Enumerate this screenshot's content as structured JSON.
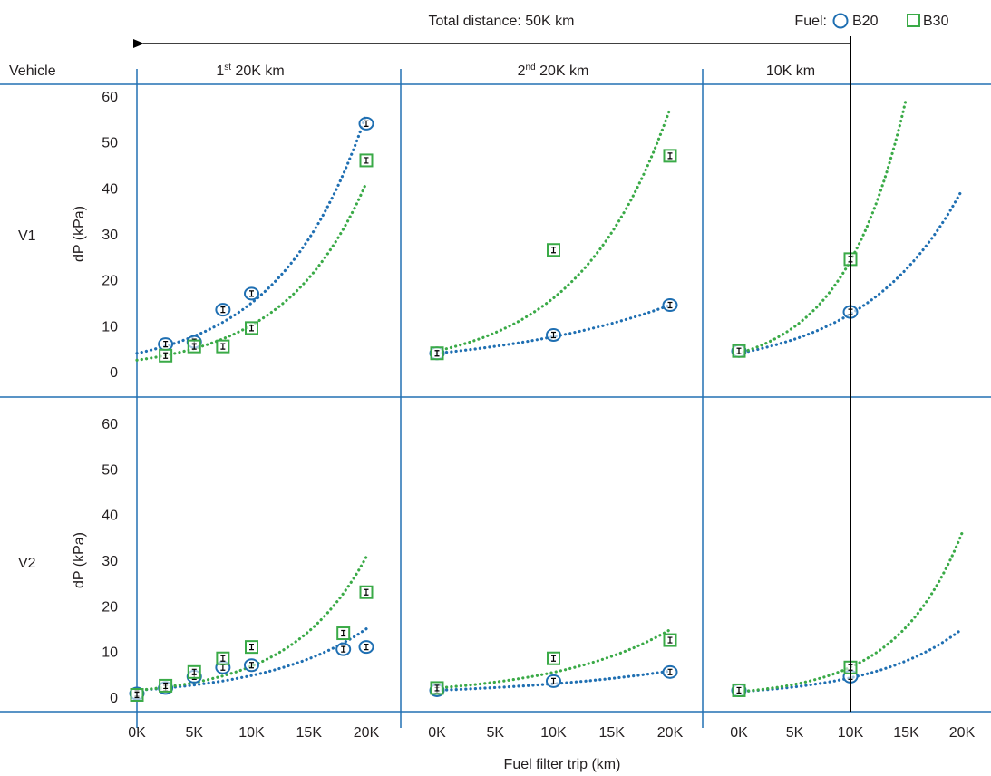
{
  "header": {
    "total_distance": "Total distance: 50K km",
    "fuel_label": "Fuel:",
    "vehicle_label": "Vehicle"
  },
  "columns": [
    {
      "main": "1",
      "sup": "st",
      "rest": " 20K km"
    },
    {
      "main": "2",
      "sup": "nd",
      "rest": " 20K km"
    },
    {
      "main": "10K km",
      "sup": "",
      "rest": ""
    }
  ],
  "rows": [
    "V1",
    "V2"
  ],
  "x_axis_title": "Fuel filter trip (km)",
  "y_axis_title": "dP (kPa)",
  "colors": {
    "B20": "#1f6fb2",
    "B30": "#3aaa47",
    "divider": "#2271b3",
    "marker": "#000000"
  },
  "chart_data": [
    {
      "type": "scatter",
      "row": "V1",
      "column": "1st 20K km",
      "ylabel": "dP (kPa)",
      "ylim": [
        0,
        60
      ],
      "xlim": [
        0,
        20
      ],
      "series": [
        {
          "name": "B20",
          "marker": "circle",
          "x": [
            2.5,
            5,
            7.5,
            10,
            20
          ],
          "y": [
            6,
            6.5,
            13.5,
            17,
            54
          ],
          "trend": {
            "a": 4.0,
            "b": 0.132,
            "x0": 0,
            "x1": 20
          }
        },
        {
          "name": "B30",
          "marker": "square",
          "x": [
            2.5,
            5,
            7.5,
            10,
            20
          ],
          "y": [
            3.5,
            5.5,
            5.5,
            9.5,
            46
          ],
          "trend": {
            "a": 2.5,
            "b": 0.14,
            "x0": 0,
            "x1": 20
          }
        }
      ]
    },
    {
      "type": "scatter",
      "row": "V1",
      "column": "2nd 20K km",
      "ylim": [
        0,
        60
      ],
      "xlim": [
        0,
        20
      ],
      "series": [
        {
          "name": "B20",
          "marker": "circle",
          "x": [
            0,
            10,
            20
          ],
          "y": [
            4,
            8,
            14.5
          ],
          "trend": {
            "a": 4.0,
            "b": 0.0644,
            "x0": 0,
            "x1": 20
          }
        },
        {
          "name": "B30",
          "marker": "square",
          "x": [
            0,
            10,
            20
          ],
          "y": [
            4,
            26.5,
            47
          ],
          "trend": {
            "a": 4.5,
            "b": 0.1272,
            "x0": 0,
            "x1": 20
          }
        }
      ]
    },
    {
      "type": "scatter",
      "row": "V1",
      "column": "10K km",
      "ylim": [
        0,
        60
      ],
      "xlim": [
        0,
        20
      ],
      "series": [
        {
          "name": "B20",
          "marker": "circle",
          "x": [
            0,
            10
          ],
          "y": [
            4.5,
            13
          ],
          "trend": {
            "a": 4.0,
            "b": 0.1146,
            "x0": 0,
            "x1": 20
          }
        },
        {
          "name": "B30",
          "marker": "square",
          "x": [
            0,
            10
          ],
          "y": [
            4.5,
            24.5
          ],
          "trend": {
            "a": 4.0,
            "b": 0.18,
            "x0": 0,
            "x1": 15
          }
        }
      ]
    },
    {
      "type": "scatter",
      "row": "V2",
      "column": "1st 20K km",
      "ylabel": "dP (kPa)",
      "ylim": [
        0,
        60
      ],
      "xlim": [
        0,
        20
      ],
      "series": [
        {
          "name": "B20",
          "marker": "circle",
          "x": [
            0,
            2.5,
            5,
            7.5,
            10,
            18,
            20
          ],
          "y": [
            0.8,
            2,
            4.5,
            6.5,
            7,
            10.5,
            11
          ],
          "trend": {
            "a": 1.5,
            "b": 0.115,
            "x0": 0,
            "x1": 20
          }
        },
        {
          "name": "B30",
          "marker": "square",
          "x": [
            0,
            2.5,
            5,
            7.5,
            10,
            18,
            20
          ],
          "y": [
            0.5,
            2.5,
            5.5,
            8.5,
            11,
            14,
            23
          ],
          "trend": {
            "a": 1.5,
            "b": 0.151,
            "x0": 0,
            "x1": 20
          }
        }
      ]
    },
    {
      "type": "scatter",
      "row": "V2",
      "column": "2nd 20K km",
      "ylim": [
        0,
        60
      ],
      "xlim": [
        0,
        20
      ],
      "series": [
        {
          "name": "B20",
          "marker": "circle",
          "x": [
            0,
            10,
            20
          ],
          "y": [
            1.5,
            3.5,
            5.5
          ],
          "trend": {
            "a": 1.5,
            "b": 0.067,
            "x0": 0,
            "x1": 20
          }
        },
        {
          "name": "B30",
          "marker": "square",
          "x": [
            0,
            10,
            20
          ],
          "y": [
            2,
            8.5,
            12.5
          ],
          "trend": {
            "a": 2.0,
            "b": 0.1,
            "x0": 0,
            "x1": 20
          }
        }
      ]
    },
    {
      "type": "scatter",
      "row": "V2",
      "column": "10K km",
      "ylim": [
        0,
        60
      ],
      "xlim": [
        0,
        20
      ],
      "series": [
        {
          "name": "B20",
          "marker": "circle",
          "x": [
            0,
            10
          ],
          "y": [
            1.5,
            4.5
          ],
          "trend": {
            "a": 1.2,
            "b": 0.126,
            "x0": 0,
            "x1": 20
          }
        },
        {
          "name": "B30",
          "marker": "square",
          "x": [
            0,
            10
          ],
          "y": [
            1.5,
            6.5
          ],
          "trend": {
            "a": 1.2,
            "b": 0.17,
            "x0": 0,
            "x1": 20
          }
        }
      ]
    }
  ],
  "y_ticks": [
    0,
    10,
    20,
    30,
    40,
    50,
    60
  ],
  "x_ticks": [
    {
      "v": 0,
      "label": "0K"
    },
    {
      "v": 5,
      "label": "5K"
    },
    {
      "v": 10,
      "label": "10K"
    },
    {
      "v": 15,
      "label": "15K"
    },
    {
      "v": 20,
      "label": "20K"
    }
  ]
}
